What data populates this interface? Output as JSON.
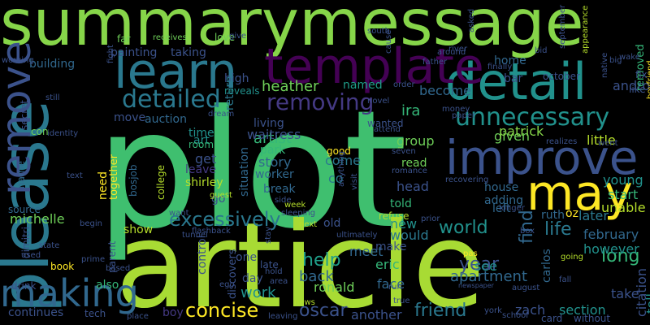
{
  "words": [
    {
      "t": "plot",
      "c": "#3fbf6f"
    },
    {
      "t": "article",
      "c": "#a8db34"
    },
    {
      "t": "summarymessage",
      "c": "#86d549"
    },
    {
      "t": "please",
      "c": "#2a788e"
    },
    {
      "t": "improve",
      "c": "#3b528b"
    },
    {
      "t": "detail",
      "c": "#21918c"
    },
    {
      "t": "learn",
      "c": "#2a788e"
    },
    {
      "t": "template",
      "c": "#440154"
    },
    {
      "t": "may",
      "c": "#fde725"
    },
    {
      "t": "remove",
      "c": "#3b528b"
    },
    {
      "t": "making",
      "c": "#31688e"
    },
    {
      "t": "unnecessary",
      "c": "#21918c"
    },
    {
      "t": "detailed",
      "c": "#2a788e"
    },
    {
      "t": "removing",
      "c": "#443983"
    },
    {
      "t": "excessively",
      "c": "#2a788e"
    },
    {
      "t": "concise",
      "c": "#fde725"
    },
    {
      "t": "friend",
      "c": "#2a788e"
    },
    {
      "t": "world",
      "c": "#21918c"
    },
    {
      "t": "year",
      "c": "#3b528b"
    },
    {
      "t": "help",
      "c": "#1f9e89"
    },
    {
      "t": "long",
      "c": "#35b779"
    },
    {
      "t": "oscar",
      "c": "#3b528b"
    },
    {
      "t": "find",
      "c": "#31688e"
    },
    {
      "t": "life",
      "c": "#2a788e"
    },
    {
      "t": "heather",
      "c": "#6ece58"
    },
    {
      "t": "artist",
      "c": "#35b779"
    },
    {
      "t": "ira",
      "c": "#35b779"
    },
    {
      "t": "back",
      "c": "#31688e"
    },
    {
      "t": "apartment",
      "c": "#31688e"
    },
    {
      "t": "work",
      "c": "#21918c"
    },
    {
      "t": "michelle",
      "c": "#6ece58"
    },
    {
      "t": "story",
      "c": "#31688e"
    },
    {
      "t": "head",
      "c": "#3b528b"
    },
    {
      "t": "new",
      "c": "#21918c"
    },
    {
      "t": "meet",
      "c": "#31688e"
    },
    {
      "t": "would",
      "c": "#2a788e"
    },
    {
      "t": "eric",
      "c": "#35b779"
    },
    {
      "t": "face",
      "c": "#31688e"
    },
    {
      "t": "ronald",
      "c": "#6ece58"
    },
    {
      "t": "section",
      "c": "#21918c"
    },
    {
      "t": "zach",
      "c": "#3b528b"
    },
    {
      "t": "another",
      "c": "#3b528b"
    },
    {
      "t": "see",
      "c": "#21918c"
    },
    {
      "t": "make",
      "c": "#3b528b"
    },
    {
      "t": "told",
      "c": "#35b779"
    },
    {
      "t": "park",
      "c": "#35b779"
    },
    {
      "t": "living",
      "c": "#3b528b"
    },
    {
      "t": "waitress",
      "c": "#3b528b"
    },
    {
      "t": "group",
      "c": "#6ece58"
    },
    {
      "t": "become",
      "c": "#31688e"
    },
    {
      "t": "given",
      "c": "#6ece58"
    },
    {
      "t": "patrick",
      "c": "#86d549"
    },
    {
      "t": "little",
      "c": "#b5de2b"
    },
    {
      "t": "young",
      "c": "#21918c"
    },
    {
      "t": "start",
      "c": "#35b779"
    },
    {
      "t": "unable",
      "c": "#b5de2b"
    },
    {
      "t": "later",
      "c": "#2a788e"
    },
    {
      "t": "february",
      "c": "#31688e"
    },
    {
      "t": "however",
      "c": "#21918c"
    },
    {
      "t": "take",
      "c": "#3b528b"
    },
    {
      "t": "citation",
      "c": "#3b528b"
    },
    {
      "t": "tell",
      "c": "#21918c"
    },
    {
      "t": "android",
      "c": "#3b528b"
    },
    {
      "t": "removed",
      "c": "#35b779"
    },
    {
      "t": "boyfriend",
      "c": "#fde725"
    },
    {
      "t": "building",
      "c": "#31688e"
    },
    {
      "t": "painting",
      "c": "#3b528b"
    },
    {
      "t": "taking",
      "c": "#3b528b"
    },
    {
      "t": "high",
      "c": "#3b528b"
    },
    {
      "t": "return",
      "c": "#2a788e"
    },
    {
      "t": "love",
      "c": "#6ece58"
    },
    {
      "t": "named",
      "c": "#1f9e89"
    },
    {
      "t": "reveals",
      "c": "#21918c"
    },
    {
      "t": "bar",
      "c": "#3b528b"
    },
    {
      "t": "home",
      "c": "#31688e"
    },
    {
      "t": "october",
      "c": "#3b528b"
    },
    {
      "t": "move",
      "c": "#3b528b"
    },
    {
      "t": "auction",
      "c": "#31688e"
    },
    {
      "t": "time",
      "c": "#21918c"
    },
    {
      "t": "art",
      "c": "#21918c"
    },
    {
      "t": "get",
      "c": "#3b528b"
    },
    {
      "t": "leave",
      "c": "#443983"
    },
    {
      "t": "shirley",
      "c": "#b5de2b"
    },
    {
      "t": "college",
      "c": "#b5de2b"
    },
    {
      "t": "need",
      "c": "#fde725"
    },
    {
      "t": "together",
      "c": "#fde725"
    },
    {
      "t": "bosjob",
      "c": "#31688e"
    },
    {
      "t": "situation",
      "c": "#31688e"
    },
    {
      "t": "name",
      "c": "#31688e"
    },
    {
      "t": "source",
      "c": "#31688e"
    },
    {
      "t": "show",
      "c": "#b5de2b"
    },
    {
      "t": "parent",
      "c": "#3b528b"
    },
    {
      "t": "control",
      "c": "#3b528b"
    },
    {
      "t": "discovers",
      "c": "#3b528b"
    },
    {
      "t": "also",
      "c": "#35b779"
    },
    {
      "t": "day",
      "c": "#3b528b"
    },
    {
      "t": "late",
      "c": "#3b528b"
    },
    {
      "t": "one",
      "c": "#3b528b"
    },
    {
      "t": "boy",
      "c": "#443983"
    },
    {
      "t": "continues",
      "c": "#3b528b"
    },
    {
      "t": "drink",
      "c": "#3b528b"
    },
    {
      "t": "dimitri",
      "c": "#3b528b"
    },
    {
      "t": "adding",
      "c": "#31688e"
    },
    {
      "t": "house",
      "c": "#31688e"
    },
    {
      "t": "left",
      "c": "#31688e"
    },
    {
      "t": "ruth",
      "c": "#31688e"
    },
    {
      "t": "old",
      "c": "#3b528b"
    },
    {
      "t": "carlos",
      "c": "#31688e"
    },
    {
      "t": "read",
      "c": "#6ece58"
    },
    {
      "t": "come",
      "c": "#2a788e"
    },
    {
      "t": "co",
      "c": "#2a788e"
    },
    {
      "t": "worker",
      "c": "#31688e"
    },
    {
      "t": "break",
      "c": "#31688e"
    },
    {
      "t": "secret",
      "c": "#3b528b"
    },
    {
      "t": "room",
      "c": "#35b779"
    },
    {
      "t": "go",
      "c": "#3b528b"
    },
    {
      "t": "oz",
      "c": "#fde725"
    },
    {
      "t": "tech",
      "c": "#3b528b"
    },
    {
      "t": "card",
      "c": "#3b528b"
    },
    {
      "t": "without",
      "c": "#3b528b"
    },
    {
      "t": "school",
      "c": "#3b528b"
    },
    {
      "t": "fall",
      "c": "#3b528b"
    },
    {
      "t": "august",
      "c": "#3b528b"
    },
    {
      "t": "newspaper",
      "c": "#3b528b"
    },
    {
      "t": "big",
      "c": "#3b528b"
    },
    {
      "t": "give",
      "c": "#3b528b"
    },
    {
      "t": "far",
      "c": "#6ece58"
    },
    {
      "t": "receives",
      "c": "#6ece58"
    },
    {
      "t": "south",
      "c": "#3b528b"
    },
    {
      "t": "asked",
      "c": "#3b528b"
    },
    {
      "t": "river",
      "c": "#3b528b"
    },
    {
      "t": "cause",
      "c": "#3b528b"
    },
    {
      "t": "father",
      "c": "#3b528b"
    },
    {
      "t": "around",
      "c": "#3b528b"
    },
    {
      "t": "appearance",
      "c": "#b5de2b"
    },
    {
      "t": "september",
      "c": "#3b528b"
    },
    {
      "t": "wake",
      "c": "#3b528b"
    },
    {
      "t": "fix",
      "c": "#3b528b"
    },
    {
      "t": "native",
      "c": "#3b528b"
    },
    {
      "t": "like",
      "c": "#3b528b"
    },
    {
      "t": "finally",
      "c": "#3b528b"
    },
    {
      "t": "fight",
      "c": "#3b528b"
    },
    {
      "t": "working",
      "c": "#3b528b"
    },
    {
      "t": "still",
      "c": "#3b528b"
    },
    {
      "t": "identity",
      "c": "#3b528b"
    },
    {
      "t": "con",
      "c": "#6ece58"
    },
    {
      "t": "dream",
      "c": "#3b528b"
    },
    {
      "t": "novel",
      "c": "#3b528b"
    },
    {
      "t": "order",
      "c": "#3b528b"
    },
    {
      "t": "wanted",
      "c": "#3b528b"
    },
    {
      "t": "attend",
      "c": "#3b528b"
    },
    {
      "t": "money",
      "c": "#3b528b"
    },
    {
      "t": "paper",
      "c": "#3b528b"
    },
    {
      "t": "seven",
      "c": "#3b528b"
    },
    {
      "t": "realizes",
      "c": "#3b528b"
    },
    {
      "t": "went",
      "c": "#3b528b"
    },
    {
      "t": "good",
      "c": "#fde725"
    },
    {
      "t": "anything",
      "c": "#3b528b"
    },
    {
      "t": "romance",
      "c": "#3b528b"
    },
    {
      "t": "text",
      "c": "#3b528b"
    },
    {
      "t": "visit",
      "c": "#3b528b"
    },
    {
      "t": "recovering",
      "c": "#3b528b"
    },
    {
      "t": "guest",
      "c": "#b5de2b"
    },
    {
      "t": "side",
      "c": "#3b528b"
    },
    {
      "t": "want",
      "c": "#3b528b"
    },
    {
      "t": "week",
      "c": "#b5de2b"
    },
    {
      "t": "sleeping",
      "c": "#3b528b"
    },
    {
      "t": "refuse",
      "c": "#b5de2b"
    },
    {
      "t": "prior",
      "c": "#3b528b"
    },
    {
      "t": "longer",
      "c": "#3b528b"
    },
    {
      "t": "next",
      "c": "#b5de2b"
    },
    {
      "t": "begin",
      "c": "#3b528b"
    },
    {
      "t": "tunnel",
      "c": "#3b528b"
    },
    {
      "t": "flashback",
      "c": "#3b528b"
    },
    {
      "t": "state",
      "c": "#3b528b"
    },
    {
      "t": "used",
      "c": "#3b528b"
    },
    {
      "t": "prime",
      "c": "#3b528b"
    },
    {
      "t": "stay",
      "c": "#3b528b"
    },
    {
      "t": "ultimately",
      "c": "#3b528b"
    },
    {
      "t": "pas",
      "c": "#fde725"
    },
    {
      "t": "box",
      "c": "#3b528b"
    },
    {
      "t": "going",
      "c": "#b5de2b"
    },
    {
      "t": "book",
      "c": "#fde725"
    },
    {
      "t": "based",
      "c": "#3b528b"
    },
    {
      "t": "ego",
      "c": "#3b528b"
    },
    {
      "t": "hold",
      "c": "#3b528b"
    },
    {
      "t": "area",
      "c": "#3b528b"
    },
    {
      "t": "run",
      "c": "#3b528b"
    },
    {
      "t": "true",
      "c": "#3b528b"
    },
    {
      "t": "news",
      "c": "#b5de2b"
    },
    {
      "t": "leaving",
      "c": "#3b528b"
    },
    {
      "t": "place",
      "c": "#3b528b"
    },
    {
      "t": "york",
      "c": "#3b528b"
    },
    {
      "t": "bid",
      "c": "#3b528b"
    },
    {
      "t": "ego",
      "c": "#3b528b"
    }
  ]
}
